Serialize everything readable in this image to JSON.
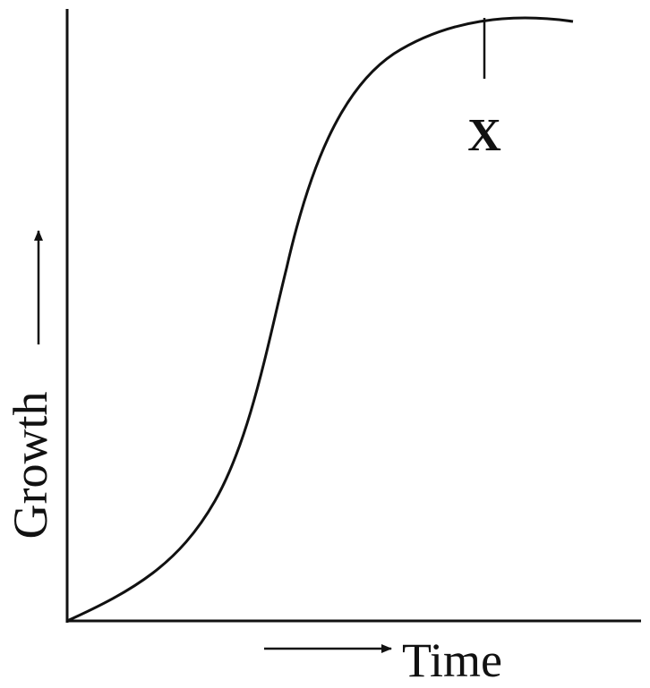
{
  "diagram": {
    "y_axis_label": "Growth",
    "x_axis_label": "Time",
    "marker_label": "X"
  }
}
